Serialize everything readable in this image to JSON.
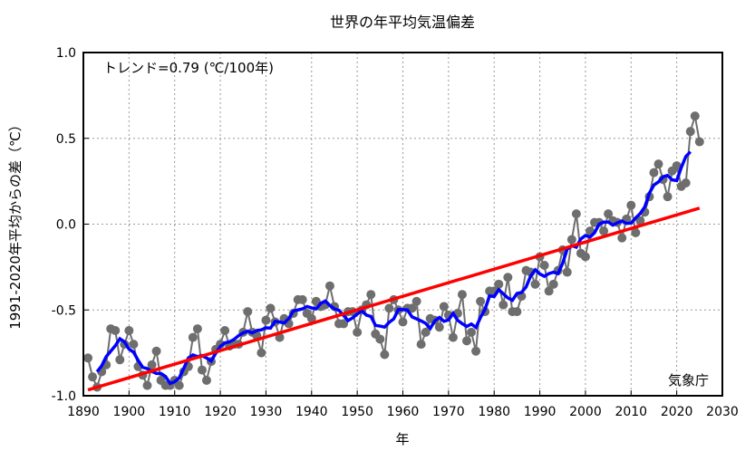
{
  "chart_data": {
    "type": "line",
    "title": "世界の年平均気温偏差",
    "xlabel": "年",
    "ylabel": "1991-2020年平均からの差（℃）",
    "annotation": "トレンド=0.79 (℃/100年)",
    "credit": "気象庁",
    "xlim": [
      1890,
      2030
    ],
    "ylim": [
      -1.0,
      1.0
    ],
    "xticks": [
      1890,
      1900,
      1910,
      1920,
      1930,
      1940,
      1950,
      1960,
      1970,
      1980,
      1990,
      2000,
      2010,
      2020,
      2030
    ],
    "yticks": [
      -1.0,
      -0.5,
      0.0,
      0.5,
      1.0
    ],
    "ytick_labels": [
      "-1.0",
      "-0.5",
      "0.0",
      "0.5",
      "1.0"
    ],
    "grid": true,
    "start_year": 1891,
    "series": [
      {
        "role": "annual",
        "color": "#6e6e6e",
        "values": [
          -0.78,
          -0.89,
          -0.95,
          -0.86,
          -0.82,
          -0.61,
          -0.62,
          -0.79,
          -0.7,
          -0.62,
          -0.7,
          -0.83,
          -0.88,
          -0.94,
          -0.82,
          -0.74,
          -0.91,
          -0.94,
          -0.94,
          -0.91,
          -0.94,
          -0.86,
          -0.83,
          -0.66,
          -0.61,
          -0.85,
          -0.91,
          -0.8,
          -0.73,
          -0.7,
          -0.62,
          -0.71,
          -0.7,
          -0.7,
          -0.63,
          -0.51,
          -0.63,
          -0.65,
          -0.75,
          -0.56,
          -0.49,
          -0.57,
          -0.66,
          -0.55,
          -0.58,
          -0.52,
          -0.44,
          -0.44,
          -0.52,
          -0.55,
          -0.45,
          -0.48,
          -0.47,
          -0.36,
          -0.48,
          -0.58,
          -0.58,
          -0.51,
          -0.51,
          -0.63,
          -0.5,
          -0.47,
          -0.41,
          -0.64,
          -0.67,
          -0.76,
          -0.49,
          -0.44,
          -0.5,
          -0.57,
          -0.49,
          -0.49,
          -0.45,
          -0.7,
          -0.63,
          -0.55,
          -0.56,
          -0.6,
          -0.48,
          -0.53,
          -0.66,
          -0.52,
          -0.41,
          -0.68,
          -0.63,
          -0.74,
          -0.45,
          -0.51,
          -0.39,
          -0.39,
          -0.35,
          -0.47,
          -0.31,
          -0.51,
          -0.51,
          -0.42,
          -0.27,
          -0.28,
          -0.35,
          -0.19,
          -0.24,
          -0.39,
          -0.35,
          -0.27,
          -0.15,
          -0.28,
          -0.09,
          0.06,
          -0.17,
          -0.19,
          -0.04,
          0.01,
          0.01,
          -0.04,
          0.06,
          0.02,
          0.01,
          -0.08,
          0.03,
          0.11,
          -0.05,
          0.02,
          0.07,
          0.16,
          0.3,
          0.35,
          0.26,
          0.16,
          0.31,
          0.34,
          0.22,
          0.24,
          0.54,
          0.63,
          0.48
        ]
      },
      {
        "role": "5-year running mean",
        "color": "#0000ff"
      },
      {
        "role": "linear trend",
        "color": "#ff0000"
      }
    ]
  }
}
